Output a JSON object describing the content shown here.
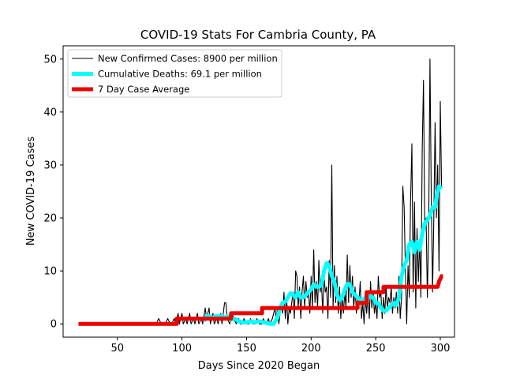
{
  "chart_data": {
    "type": "line",
    "title": "COVID-19 Stats For Cambria County, PA",
    "xlabel": "Days Since 2020 Began",
    "ylabel": "New COVID-19 Cases",
    "xlim": [
      8,
      311
    ],
    "ylim": [
      -2.5,
      52.5
    ],
    "xticks": [
      50,
      100,
      150,
      200,
      250,
      300
    ],
    "yticks": [
      0,
      10,
      20,
      30,
      40,
      50
    ],
    "grid": false,
    "legend_position": "top-left",
    "series": [
      {
        "name": "New Confirmed Cases: 8900 per million",
        "color": "#000000",
        "style": "thin",
        "points": [
          [
            20,
            0
          ],
          [
            80,
            0
          ],
          [
            82,
            1
          ],
          [
            84,
            0
          ],
          [
            87,
            0
          ],
          [
            89,
            1
          ],
          [
            91,
            0
          ],
          [
            92,
            0
          ],
          [
            94,
            1
          ],
          [
            95,
            0
          ],
          [
            97,
            2
          ],
          [
            98,
            0
          ],
          [
            100,
            2
          ],
          [
            101,
            0
          ],
          [
            103,
            1
          ],
          [
            104,
            0
          ],
          [
            106,
            2
          ],
          [
            107,
            0
          ],
          [
            109,
            1
          ],
          [
            110,
            0
          ],
          [
            112,
            2
          ],
          [
            113,
            0
          ],
          [
            115,
            1
          ],
          [
            116,
            0
          ],
          [
            118,
            3
          ],
          [
            119,
            1
          ],
          [
            121,
            3
          ],
          [
            122,
            0
          ],
          [
            124,
            2
          ],
          [
            125,
            0
          ],
          [
            127,
            1
          ],
          [
            128,
            0
          ],
          [
            130,
            2
          ],
          [
            131,
            0
          ],
          [
            133,
            4
          ],
          [
            134,
            4
          ],
          [
            135,
            1
          ],
          [
            137,
            0
          ],
          [
            139,
            2
          ],
          [
            140,
            1
          ],
          [
            142,
            0
          ],
          [
            144,
            1
          ],
          [
            145,
            0
          ],
          [
            147,
            0
          ],
          [
            148,
            1
          ],
          [
            150,
            0
          ],
          [
            152,
            0
          ],
          [
            153,
            1
          ],
          [
            155,
            0
          ],
          [
            157,
            0
          ],
          [
            158,
            1
          ],
          [
            160,
            0
          ],
          [
            162,
            0
          ],
          [
            163,
            1
          ],
          [
            165,
            0
          ],
          [
            167,
            1
          ],
          [
            168,
            0
          ],
          [
            170,
            1
          ],
          [
            172,
            3
          ],
          [
            173,
            1
          ],
          [
            174,
            3
          ],
          [
            175,
            0
          ],
          [
            177,
            4
          ],
          [
            178,
            2
          ],
          [
            179,
            6
          ],
          [
            180,
            1
          ],
          [
            181,
            5
          ],
          [
            182,
            0
          ],
          [
            183,
            3
          ],
          [
            184,
            2
          ],
          [
            186,
            6
          ],
          [
            187,
            1
          ],
          [
            188,
            10
          ],
          [
            189,
            9
          ],
          [
            190,
            3
          ],
          [
            191,
            7
          ],
          [
            192,
            1
          ],
          [
            193,
            6
          ],
          [
            194,
            9
          ],
          [
            195,
            3
          ],
          [
            196,
            8
          ],
          [
            197,
            5
          ],
          [
            198,
            6
          ],
          [
            199,
            2
          ],
          [
            200,
            9
          ],
          [
            201,
            3
          ],
          [
            202,
            14
          ],
          [
            203,
            4
          ],
          [
            204,
            8
          ],
          [
            205,
            3
          ],
          [
            206,
            12
          ],
          [
            207,
            6
          ],
          [
            208,
            8
          ],
          [
            209,
            2
          ],
          [
            210,
            9
          ],
          [
            211,
            6
          ],
          [
            212,
            7
          ],
          [
            213,
            1
          ],
          [
            214,
            12
          ],
          [
            215,
            5
          ],
          [
            216,
            30
          ],
          [
            217,
            3
          ],
          [
            218,
            11
          ],
          [
            219,
            4
          ],
          [
            220,
            9
          ],
          [
            221,
            2
          ],
          [
            222,
            7
          ],
          [
            223,
            1
          ],
          [
            224,
            5
          ],
          [
            225,
            2
          ],
          [
            226,
            6
          ],
          [
            227,
            3
          ],
          [
            228,
            13
          ],
          [
            229,
            4
          ],
          [
            230,
            11
          ],
          [
            231,
            5
          ],
          [
            232,
            9
          ],
          [
            233,
            3
          ],
          [
            234,
            7
          ],
          [
            235,
            2
          ],
          [
            236,
            5
          ],
          [
            237,
            4
          ],
          [
            238,
            8
          ],
          [
            239,
            1
          ],
          [
            240,
            4
          ],
          [
            241,
            0
          ],
          [
            242,
            5
          ],
          [
            243,
            2
          ],
          [
            244,
            6
          ],
          [
            245,
            1
          ],
          [
            246,
            8
          ],
          [
            247,
            3
          ],
          [
            248,
            6
          ],
          [
            249,
            2
          ],
          [
            250,
            4
          ],
          [
            251,
            1
          ],
          [
            252,
            9
          ],
          [
            253,
            5
          ],
          [
            254,
            6
          ],
          [
            255,
            1
          ],
          [
            256,
            5
          ],
          [
            257,
            2
          ],
          [
            258,
            7
          ],
          [
            259,
            3
          ],
          [
            260,
            5
          ],
          [
            261,
            4
          ],
          [
            262,
            7
          ],
          [
            263,
            2
          ],
          [
            264,
            5
          ],
          [
            265,
            3
          ],
          [
            266,
            6
          ],
          [
            267,
            2
          ],
          [
            268,
            9
          ],
          [
            269,
            1
          ],
          [
            270,
            5
          ],
          [
            271,
            26
          ],
          [
            272,
            22
          ],
          [
            273,
            10
          ],
          [
            274,
            0
          ],
          [
            275,
            11
          ],
          [
            276,
            5
          ],
          [
            277,
            23
          ],
          [
            278,
            34
          ],
          [
            279,
            6
          ],
          [
            280,
            23
          ],
          [
            281,
            3
          ],
          [
            282,
            18
          ],
          [
            283,
            8
          ],
          [
            284,
            16
          ],
          [
            285,
            5
          ],
          [
            286,
            33
          ],
          [
            287,
            46
          ],
          [
            288,
            18
          ],
          [
            289,
            20
          ],
          [
            290,
            5
          ],
          [
            291,
            18
          ],
          [
            292,
            50
          ],
          [
            293,
            25
          ],
          [
            294,
            6
          ],
          [
            295,
            20
          ],
          [
            296,
            38
          ],
          [
            297,
            20
          ],
          [
            298,
            30
          ],
          [
            299,
            10
          ],
          [
            300,
            42
          ],
          [
            301,
            26
          ]
        ]
      },
      {
        "name": "Cumulative Deaths: 69.1 per million",
        "color": "#00ffff",
        "style": "thick",
        "points": [
          [
            117,
            0.5
          ],
          [
            119,
            1.5
          ],
          [
            121,
            1.5
          ],
          [
            123,
            1
          ],
          [
            126,
            1.5
          ],
          [
            128,
            1.5
          ],
          [
            131,
            1.5
          ],
          [
            133,
            1
          ],
          [
            135,
            1.5
          ],
          [
            138,
            0.8
          ],
          [
            141,
            1
          ],
          [
            144,
            0.5
          ],
          [
            147,
            0.3
          ],
          [
            150,
            0.3
          ],
          [
            153,
            0.5
          ],
          [
            156,
            0.3
          ],
          [
            159,
            0.5
          ],
          [
            162,
            0.4
          ],
          [
            165,
            0.2
          ],
          [
            168,
            0
          ],
          [
            171,
            0
          ],
          [
            174,
            1.2
          ],
          [
            176,
            3
          ],
          [
            178,
            4
          ],
          [
            180,
            4.2
          ],
          [
            182,
            5
          ],
          [
            184,
            5.8
          ],
          [
            186,
            5.5
          ],
          [
            188,
            5
          ],
          [
            190,
            6
          ],
          [
            192,
            5
          ],
          [
            194,
            5
          ],
          [
            196,
            5.5
          ],
          [
            198,
            6
          ],
          [
            200,
            6.5
          ],
          [
            202,
            7.5
          ],
          [
            204,
            7
          ],
          [
            206,
            7
          ],
          [
            208,
            7.3
          ],
          [
            210,
            10
          ],
          [
            212,
            11.5
          ],
          [
            214,
            11
          ],
          [
            216,
            9
          ],
          [
            218,
            8
          ],
          [
            220,
            5.5
          ],
          [
            222,
            4.5
          ],
          [
            224,
            5
          ],
          [
            226,
            6.5
          ],
          [
            228,
            7.5
          ],
          [
            230,
            7.5
          ],
          [
            232,
            6
          ],
          [
            234,
            5.5
          ],
          [
            236,
            5
          ],
          [
            238,
            4.5
          ],
          [
            240,
            4.5
          ],
          [
            242,
            5
          ],
          [
            244,
            6
          ],
          [
            246,
            5
          ],
          [
            248,
            5
          ],
          [
            250,
            4
          ],
          [
            252,
            4
          ],
          [
            254,
            3
          ],
          [
            256,
            2.5
          ],
          [
            258,
            2.5
          ],
          [
            260,
            3
          ],
          [
            262,
            3.5
          ],
          [
            264,
            4
          ],
          [
            266,
            3.5
          ],
          [
            268,
            5
          ],
          [
            270,
            9
          ],
          [
            272,
            11
          ],
          [
            274,
            12
          ],
          [
            276,
            15
          ],
          [
            278,
            15.5
          ],
          [
            280,
            13.5
          ],
          [
            282,
            15.5
          ],
          [
            284,
            14
          ],
          [
            286,
            17
          ],
          [
            288,
            19
          ],
          [
            290,
            19.5
          ],
          [
            292,
            20.5
          ],
          [
            294,
            22
          ],
          [
            296,
            22
          ],
          [
            297,
            24
          ],
          [
            299,
            26
          ],
          [
            301,
            25.5
          ]
        ]
      },
      {
        "name": "7 Day Case Average",
        "color": "#ee0000",
        "style": "thick",
        "points": [
          [
            20,
            0
          ],
          [
            96,
            0
          ],
          [
            96,
            1
          ],
          [
            138,
            1
          ],
          [
            138,
            2
          ],
          [
            162,
            2
          ],
          [
            162,
            3
          ],
          [
            236,
            3
          ],
          [
            236,
            4
          ],
          [
            243,
            4
          ],
          [
            243,
            6
          ],
          [
            256,
            6
          ],
          [
            256,
            7
          ],
          [
            298,
            7
          ],
          [
            299,
            8
          ],
          [
            301,
            9
          ],
          [
            302,
            9
          ]
        ]
      }
    ]
  }
}
